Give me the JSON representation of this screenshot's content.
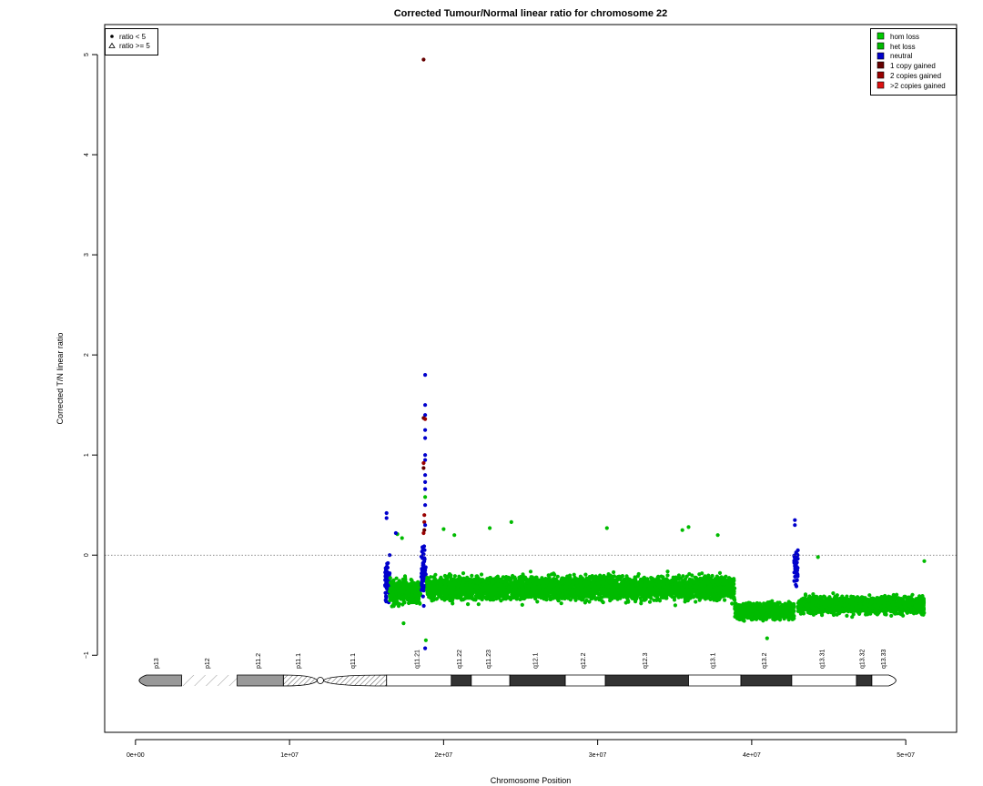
{
  "colors": {
    "hom_loss": "#00cc00",
    "het_loss": "#00bb00",
    "neutral": "#0000cc",
    "one_copy_gained": "#660000",
    "two_copies_gained": "#990000",
    "gt_two_copies_gained": "#dd1111",
    "reference_line": "#666666"
  },
  "chart_data": {
    "type": "scatter",
    "title": "Corrected Tumour/Normal linear ratio for chromosome  22",
    "xlabel": "Chromosome Position",
    "ylabel": "Corrected T/N linear ratio",
    "xlim": [
      -2000000,
      53300000
    ],
    "ylim": [
      -1.77,
      5.3
    ],
    "xticks": [
      0,
      10000000,
      20000000,
      30000000,
      40000000,
      50000000
    ],
    "xtick_labels": [
      "0e+00",
      "1e+07",
      "2e+07",
      "3e+07",
      "4e+07",
      "5e+07"
    ],
    "yticks": [
      -1,
      0,
      1,
      2,
      3,
      4,
      5
    ],
    "ytick_labels": [
      "−1",
      "0",
      "1",
      "2",
      "3",
      "4",
      "5"
    ],
    "reference_line_y": 0,
    "grid": false,
    "shape_legend": {
      "placement": "top-left",
      "entries": [
        {
          "symbol": "dot",
          "label": "ratio < 5"
        },
        {
          "symbol": "triangle",
          "label": "ratio >= 5"
        }
      ]
    },
    "legend": {
      "placement": "top-right",
      "entries": [
        {
          "label": "hom loss",
          "color_key": "hom_loss"
        },
        {
          "label": "het loss",
          "color_key": "het_loss"
        },
        {
          "label": "neutral",
          "color_key": "neutral"
        },
        {
          "label": "1 copy gained",
          "color_key": "one_copy_gained"
        },
        {
          "label": "2 copies gained",
          "color_key": "two_copies_gained"
        },
        {
          "label": ">2 copies gained",
          "color_key": "gt_two_copies_gained"
        }
      ]
    },
    "segments": [
      {
        "state": "neutral",
        "x_start": 16200000,
        "x_end": 16500000,
        "mean": -0.25,
        "spread": 0.28
      },
      {
        "state": "het_loss",
        "x_start": 16500000,
        "x_end": 18500000,
        "mean": -0.37,
        "spread": 0.17
      },
      {
        "state": "neutral",
        "x_start": 18550000,
        "x_end": 18850000,
        "mean": -0.2,
        "spread": 0.35
      },
      {
        "state": "het_loss",
        "x_start": 18900000,
        "x_end": 38900000,
        "mean": -0.33,
        "spread": 0.15
      },
      {
        "state": "het_loss",
        "x_start": 38900000,
        "x_end": 42750000,
        "mean": -0.56,
        "spread": 0.11
      },
      {
        "state": "neutral",
        "x_start": 42750000,
        "x_end": 43000000,
        "mean": -0.1,
        "spread": 0.22
      },
      {
        "state": "het_loss",
        "x_start": 43000000,
        "x_end": 51200000,
        "mean": -0.5,
        "spread": 0.11
      }
    ],
    "outliers": [
      {
        "x": 18700000,
        "y": 4.95,
        "state": "one_copy_gained"
      },
      {
        "x": 18800000,
        "y": 1.8,
        "state": "neutral"
      },
      {
        "x": 18800000,
        "y": 1.5,
        "state": "neutral"
      },
      {
        "x": 18800000,
        "y": 1.4,
        "state": "neutral"
      },
      {
        "x": 18700000,
        "y": 1.37,
        "state": "one_copy_gained"
      },
      {
        "x": 18800000,
        "y": 1.36,
        "state": "two_copies_gained"
      },
      {
        "x": 18800000,
        "y": 1.25,
        "state": "neutral"
      },
      {
        "x": 18800000,
        "y": 1.17,
        "state": "neutral"
      },
      {
        "x": 18800000,
        "y": 1.0,
        "state": "neutral"
      },
      {
        "x": 18800000,
        "y": 0.95,
        "state": "neutral"
      },
      {
        "x": 18700000,
        "y": 0.92,
        "state": "two_copies_gained"
      },
      {
        "x": 18700000,
        "y": 0.87,
        "state": "one_copy_gained"
      },
      {
        "x": 18800000,
        "y": 0.8,
        "state": "neutral"
      },
      {
        "x": 18800000,
        "y": 0.73,
        "state": "neutral"
      },
      {
        "x": 18800000,
        "y": 0.66,
        "state": "neutral"
      },
      {
        "x": 18800000,
        "y": 0.58,
        "state": "het_loss"
      },
      {
        "x": 18800000,
        "y": 0.5,
        "state": "neutral"
      },
      {
        "x": 18750000,
        "y": 0.4,
        "state": "two_copies_gained"
      },
      {
        "x": 18750000,
        "y": 0.33,
        "state": "two_copies_gained"
      },
      {
        "x": 18800000,
        "y": 0.3,
        "state": "neutral"
      },
      {
        "x": 18750000,
        "y": 0.25,
        "state": "one_copy_gained"
      },
      {
        "x": 18700000,
        "y": 0.22,
        "state": "two_copies_gained"
      },
      {
        "x": 18800000,
        "y": -0.93,
        "state": "neutral"
      },
      {
        "x": 18850000,
        "y": -0.85,
        "state": "het_loss"
      },
      {
        "x": 16300000,
        "y": 0.42,
        "state": "neutral"
      },
      {
        "x": 16300000,
        "y": 0.37,
        "state": "neutral"
      },
      {
        "x": 17000000,
        "y": 0.21,
        "state": "het_loss"
      },
      {
        "x": 16900000,
        "y": 0.22,
        "state": "neutral"
      },
      {
        "x": 17300000,
        "y": 0.17,
        "state": "het_loss"
      },
      {
        "x": 20000000,
        "y": 0.26,
        "state": "het_loss"
      },
      {
        "x": 20700000,
        "y": 0.2,
        "state": "het_loss"
      },
      {
        "x": 23000000,
        "y": 0.27,
        "state": "het_loss"
      },
      {
        "x": 24400000,
        "y": 0.33,
        "state": "het_loss"
      },
      {
        "x": 30600000,
        "y": 0.27,
        "state": "het_loss"
      },
      {
        "x": 35500000,
        "y": 0.25,
        "state": "het_loss"
      },
      {
        "x": 35900000,
        "y": 0.28,
        "state": "het_loss"
      },
      {
        "x": 37800000,
        "y": 0.2,
        "state": "het_loss"
      },
      {
        "x": 44300000,
        "y": -0.02,
        "state": "het_loss"
      },
      {
        "x": 42800000,
        "y": 0.35,
        "state": "neutral"
      },
      {
        "x": 42800000,
        "y": 0.3,
        "state": "neutral"
      },
      {
        "x": 51200000,
        "y": -0.06,
        "state": "het_loss"
      },
      {
        "x": 17400000,
        "y": -0.68,
        "state": "het_loss"
      },
      {
        "x": 41000000,
        "y": -0.83,
        "state": "het_loss"
      }
    ],
    "ideogram": {
      "centromere": 12000000,
      "bands": [
        {
          "name": "p13",
          "start": 0,
          "end": 3000000,
          "stain": "gvar"
        },
        {
          "name": "p12",
          "start": 3000000,
          "end": 6600000,
          "stain": "stalk"
        },
        {
          "name": "p11.2",
          "start": 6600000,
          "end": 9600000,
          "stain": "gvar"
        },
        {
          "name": "p11.1",
          "start": 9600000,
          "end": 11800000,
          "stain": "acen"
        },
        {
          "name": "q11.1",
          "start": 12200000,
          "end": 16300000,
          "stain": "acen"
        },
        {
          "name": "q11.21",
          "start": 16300000,
          "end": 20500000,
          "stain": "gneg"
        },
        {
          "name": "q11.22",
          "start": 20500000,
          "end": 21800000,
          "stain": "gpos"
        },
        {
          "name": "q11.23",
          "start": 21800000,
          "end": 24300000,
          "stain": "gneg"
        },
        {
          "name": "q12.1",
          "start": 24300000,
          "end": 27900000,
          "stain": "gpos"
        },
        {
          "name": "q12.2",
          "start": 27900000,
          "end": 30500000,
          "stain": "gneg"
        },
        {
          "name": "q12.3",
          "start": 30500000,
          "end": 35900000,
          "stain": "gpos"
        },
        {
          "name": "q13.1",
          "start": 35900000,
          "end": 39300000,
          "stain": "gneg"
        },
        {
          "name": "q13.2",
          "start": 39300000,
          "end": 42600000,
          "stain": "gpos"
        },
        {
          "name": "q13.31",
          "start": 42600000,
          "end": 46800000,
          "stain": "gneg"
        },
        {
          "name": "q13.32",
          "start": 46800000,
          "end": 47800000,
          "stain": "gpos"
        },
        {
          "name": "q13.33",
          "start": 47800000,
          "end": 49600000,
          "stain": "gneg"
        }
      ]
    }
  }
}
